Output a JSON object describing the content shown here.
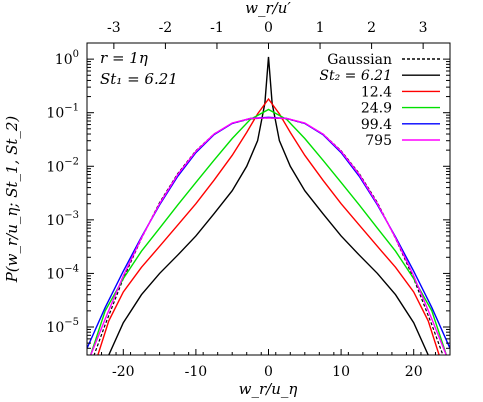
{
  "chart_data": {
    "type": "line",
    "title": "",
    "xlabel": "w_r/u_η",
    "x2label": "w_r/u′",
    "ylabel": "P(w_r/u_η; St_1, St_2)",
    "xlim": [
      -25,
      25
    ],
    "ylim": [
      3e-06,
      2.0
    ],
    "yscale": "log",
    "x_ticks": [
      -20,
      -10,
      0,
      10,
      20
    ],
    "x_tick_labels": [
      "-20",
      "-10",
      "0",
      "10",
      "20"
    ],
    "x2_ticks": [
      -3,
      -2,
      -1,
      0,
      1,
      2,
      3
    ],
    "x2_tick_labels": [
      "-3",
      "-2",
      "-1",
      "0",
      "1",
      "2",
      "3"
    ],
    "x2_scale_factor": 7.1,
    "y_ticks": [
      1e-05,
      0.0001,
      0.001,
      0.01,
      0.1,
      1
    ],
    "y_tick_labels": [
      {
        "base": "10",
        "exp": "−5"
      },
      {
        "base": "10",
        "exp": "−4"
      },
      {
        "base": "10",
        "exp": "−3"
      },
      {
        "base": "10",
        "exp": "−2"
      },
      {
        "base": "10",
        "exp": "−1"
      },
      {
        "base": "10",
        "exp": "0"
      }
    ],
    "annotations": [
      "r = 1η",
      "St₁ = 6.21"
    ],
    "legend_position": "top-right",
    "legend_title_prefix": "St₂ = ",
    "series": [
      {
        "name": "Gaussian",
        "color": "#000000",
        "dashed": true,
        "x": [
          -25,
          -22.5,
          -20,
          -17.5,
          -15,
          -12.5,
          -10,
          -7.5,
          -5,
          -2.5,
          0,
          2.5,
          5,
          7.5,
          10,
          12.5,
          15,
          17.5,
          20,
          22.5,
          25
        ],
        "y": [
          1.3e-06,
          1.1e-05,
          8e-05,
          0.00045,
          0.0021,
          0.0073,
          0.0195,
          0.04,
          0.063,
          0.077,
          0.08,
          0.077,
          0.063,
          0.04,
          0.0195,
          0.0073,
          0.0021,
          0.00045,
          8e-05,
          1.1e-05,
          1.3e-06
        ]
      },
      {
        "name": "6.21",
        "color": "#000000",
        "dashed": false,
        "x": [
          -22,
          -20,
          -17.5,
          -15,
          -12.5,
          -10,
          -7.5,
          -5,
          -3,
          -1.5,
          -0.5,
          0,
          0.5,
          1.5,
          3,
          5,
          7.5,
          10,
          12.5,
          15,
          17.5,
          20,
          22
        ],
        "y": [
          3e-06,
          1.2e-05,
          4e-05,
          0.0001,
          0.00022,
          0.0005,
          0.0013,
          0.0035,
          0.01,
          0.03,
          0.15,
          1.1,
          0.15,
          0.03,
          0.01,
          0.0035,
          0.0013,
          0.0005,
          0.00022,
          0.0001,
          4e-05,
          1.2e-05,
          3e-06
        ]
      },
      {
        "name": "12.4",
        "color": "#ff0000",
        "dashed": false,
        "x": [
          -23.5,
          -22,
          -20,
          -17.5,
          -15,
          -12.5,
          -10,
          -7.5,
          -5,
          -3,
          -1.5,
          0,
          1.5,
          3,
          5,
          7.5,
          10,
          12.5,
          15,
          17.5,
          20,
          22,
          23.5
        ],
        "y": [
          3e-06,
          1.3e-05,
          4.5e-05,
          0.00013,
          0.00032,
          0.0008,
          0.002,
          0.0055,
          0.016,
          0.043,
          0.095,
          0.18,
          0.095,
          0.043,
          0.016,
          0.0055,
          0.002,
          0.0008,
          0.00032,
          0.00013,
          4.5e-05,
          1.3e-05,
          3e-06
        ]
      },
      {
        "name": "24.9",
        "color": "#00e000",
        "dashed": false,
        "x": [
          -24.5,
          -22.5,
          -20,
          -17.5,
          -15,
          -12.5,
          -10,
          -7.5,
          -5,
          -2.5,
          0,
          2.5,
          5,
          7.5,
          10,
          12.5,
          15,
          17.5,
          20,
          22.5,
          24.5
        ],
        "y": [
          3e-06,
          2e-05,
          8e-05,
          0.00026,
          0.0007,
          0.0019,
          0.005,
          0.013,
          0.033,
          0.075,
          0.115,
          0.075,
          0.033,
          0.013,
          0.005,
          0.0019,
          0.0007,
          0.00026,
          8e-05,
          2e-05,
          3e-06
        ]
      },
      {
        "name": "99.4",
        "color": "#0000ff",
        "dashed": false,
        "x": [
          -25,
          -22.5,
          -20,
          -17.5,
          -15,
          -12.5,
          -10,
          -7.5,
          -5,
          -2.5,
          0,
          2.5,
          5,
          7.5,
          10,
          12.5,
          15,
          17.5,
          20,
          22.5,
          25
        ],
        "y": [
          4e-06,
          2.3e-05,
          0.00011,
          0.00048,
          0.0019,
          0.0065,
          0.018,
          0.039,
          0.063,
          0.078,
          0.082,
          0.078,
          0.063,
          0.039,
          0.018,
          0.0065,
          0.0019,
          0.00048,
          0.00011,
          2.3e-05,
          4e-06
        ]
      },
      {
        "name": "795",
        "color": "#ff00ff",
        "dashed": false,
        "x": [
          -25,
          -22.5,
          -20,
          -17.5,
          -15,
          -12.5,
          -10,
          -7.5,
          -5,
          -2.5,
          0,
          2.5,
          5,
          7.5,
          10,
          12.5,
          15,
          17.5,
          20,
          22.5,
          25
        ],
        "y": [
          2e-06,
          1.4e-05,
          9e-05,
          0.00046,
          0.002,
          0.007,
          0.019,
          0.04,
          0.064,
          0.078,
          0.08,
          0.078,
          0.064,
          0.04,
          0.019,
          0.007,
          0.002,
          0.00046,
          9e-05,
          1.4e-05,
          2e-06
        ]
      }
    ]
  }
}
